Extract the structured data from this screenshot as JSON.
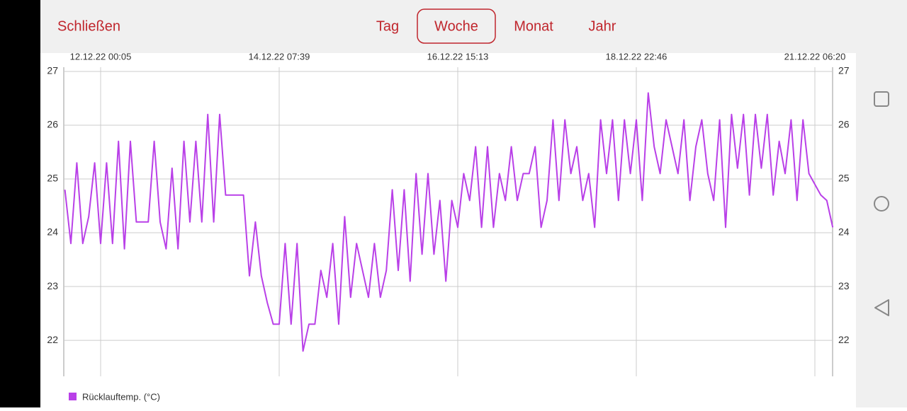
{
  "header": {
    "close": "Schließen",
    "tabs": [
      "Tag",
      "Woche",
      "Monat",
      "Jahr"
    ],
    "selected": 1
  },
  "chart_data": {
    "type": "line",
    "categories": [
      null,
      null,
      null,
      null,
      null,
      null,
      "12.12.22 00:05",
      null,
      null,
      null,
      null,
      null,
      null,
      null,
      null,
      null,
      null,
      null,
      null,
      null,
      null,
      null,
      null,
      null,
      null,
      null,
      null,
      null,
      null,
      null,
      null,
      null,
      null,
      null,
      null,
      null,
      "14.12.22 07:39",
      null,
      null,
      null,
      null,
      null,
      null,
      null,
      null,
      null,
      null,
      null,
      null,
      null,
      null,
      null,
      null,
      null,
      null,
      null,
      null,
      null,
      null,
      null,
      null,
      null,
      null,
      null,
      null,
      null,
      "16.12.22 15:13",
      null,
      null,
      null,
      null,
      null,
      null,
      null,
      null,
      null,
      null,
      null,
      null,
      null,
      null,
      null,
      null,
      null,
      null,
      null,
      null,
      null,
      null,
      null,
      null,
      null,
      null,
      null,
      null,
      null,
      "18.12.22 22:46",
      null,
      null,
      null,
      null,
      null,
      null,
      null,
      null,
      null,
      null,
      null,
      null,
      null,
      null,
      null,
      null,
      null,
      null,
      null,
      null,
      null,
      null,
      null,
      null,
      null,
      null,
      null,
      null,
      null,
      "21.12.22 06:20",
      null,
      null,
      null
    ],
    "series": [
      {
        "name": "Rücklauftemp. (°C)",
        "color": "#b940e8",
        "values": [
          24.8,
          23.8,
          25.3,
          23.8,
          24.3,
          25.3,
          23.8,
          25.3,
          23.8,
          25.7,
          23.7,
          25.7,
          24.2,
          24.2,
          24.2,
          25.7,
          24.2,
          23.7,
          25.2,
          23.7,
          25.7,
          24.2,
          25.7,
          24.2,
          26.2,
          24.2,
          26.2,
          24.7,
          24.7,
          24.7,
          24.7,
          23.2,
          24.2,
          23.2,
          22.7,
          22.3,
          22.3,
          23.8,
          22.3,
          23.8,
          21.8,
          22.3,
          22.3,
          23.3,
          22.8,
          23.8,
          22.3,
          24.3,
          22.8,
          23.8,
          23.3,
          22.8,
          23.8,
          22.8,
          23.3,
          24.8,
          23.3,
          24.8,
          23.1,
          25.1,
          23.6,
          25.1,
          23.6,
          24.6,
          23.1,
          24.6,
          24.1,
          25.1,
          24.6,
          25.6,
          24.1,
          25.6,
          24.1,
          25.1,
          24.6,
          25.6,
          24.6,
          25.1,
          25.1,
          25.6,
          24.1,
          24.6,
          26.1,
          24.6,
          26.1,
          25.1,
          25.6,
          24.6,
          25.1,
          24.1,
          26.1,
          25.1,
          26.1,
          24.6,
          26.1,
          25.1,
          26.1,
          24.6,
          26.6,
          25.6,
          25.1,
          26.1,
          25.6,
          25.1,
          26.1,
          24.6,
          25.6,
          26.1,
          25.1,
          24.6,
          26.1,
          24.1,
          26.2,
          25.2,
          26.2,
          24.7,
          26.2,
          25.2,
          26.2,
          24.7,
          25.7,
          25.1,
          26.1,
          24.6,
          26.1,
          25.1,
          24.9,
          24.7,
          24.6,
          24.1
        ]
      }
    ],
    "ylim": [
      21.33,
      27
    ],
    "yticks": [
      22,
      23,
      24,
      25,
      26,
      27
    ],
    "grid": true,
    "legend": "bottom-left"
  }
}
